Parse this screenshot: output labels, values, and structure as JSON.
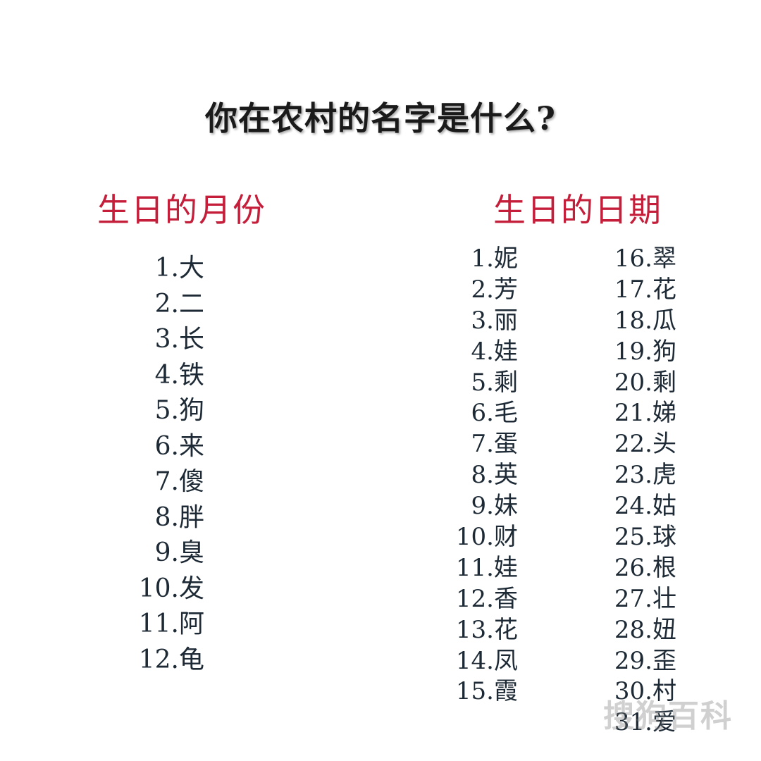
{
  "title": "你在农村的名字是什么?",
  "month_heading": "生日的月份",
  "day_heading": "生日的日期",
  "months": [
    "1.大",
    "2.二",
    "3.长",
    "4.铁",
    "5.狗",
    "6.来",
    "7.傻",
    "8.胖",
    "9.臭",
    "10.发",
    "11.阿",
    "12.龟"
  ],
  "days_col1": [
    "1.妮",
    "2.芳",
    "3.丽",
    "4.娃",
    "5.剩",
    "6.毛",
    "7.蛋",
    "8.英",
    "9.妹",
    "10.财",
    "11.娃",
    "12.香",
    "13.花",
    "14.凤",
    "15.霞"
  ],
  "days_col2": [
    "16.翠",
    "17.花",
    "18.瓜",
    "19.狗",
    "20.剩",
    "21.娣",
    "22.头",
    "23.虎",
    "24.姑",
    "25.球",
    "26.根",
    "27.壮",
    "28.妞",
    "29.歪",
    "30.村",
    "31.爱"
  ],
  "watermark": "搜狗百科"
}
